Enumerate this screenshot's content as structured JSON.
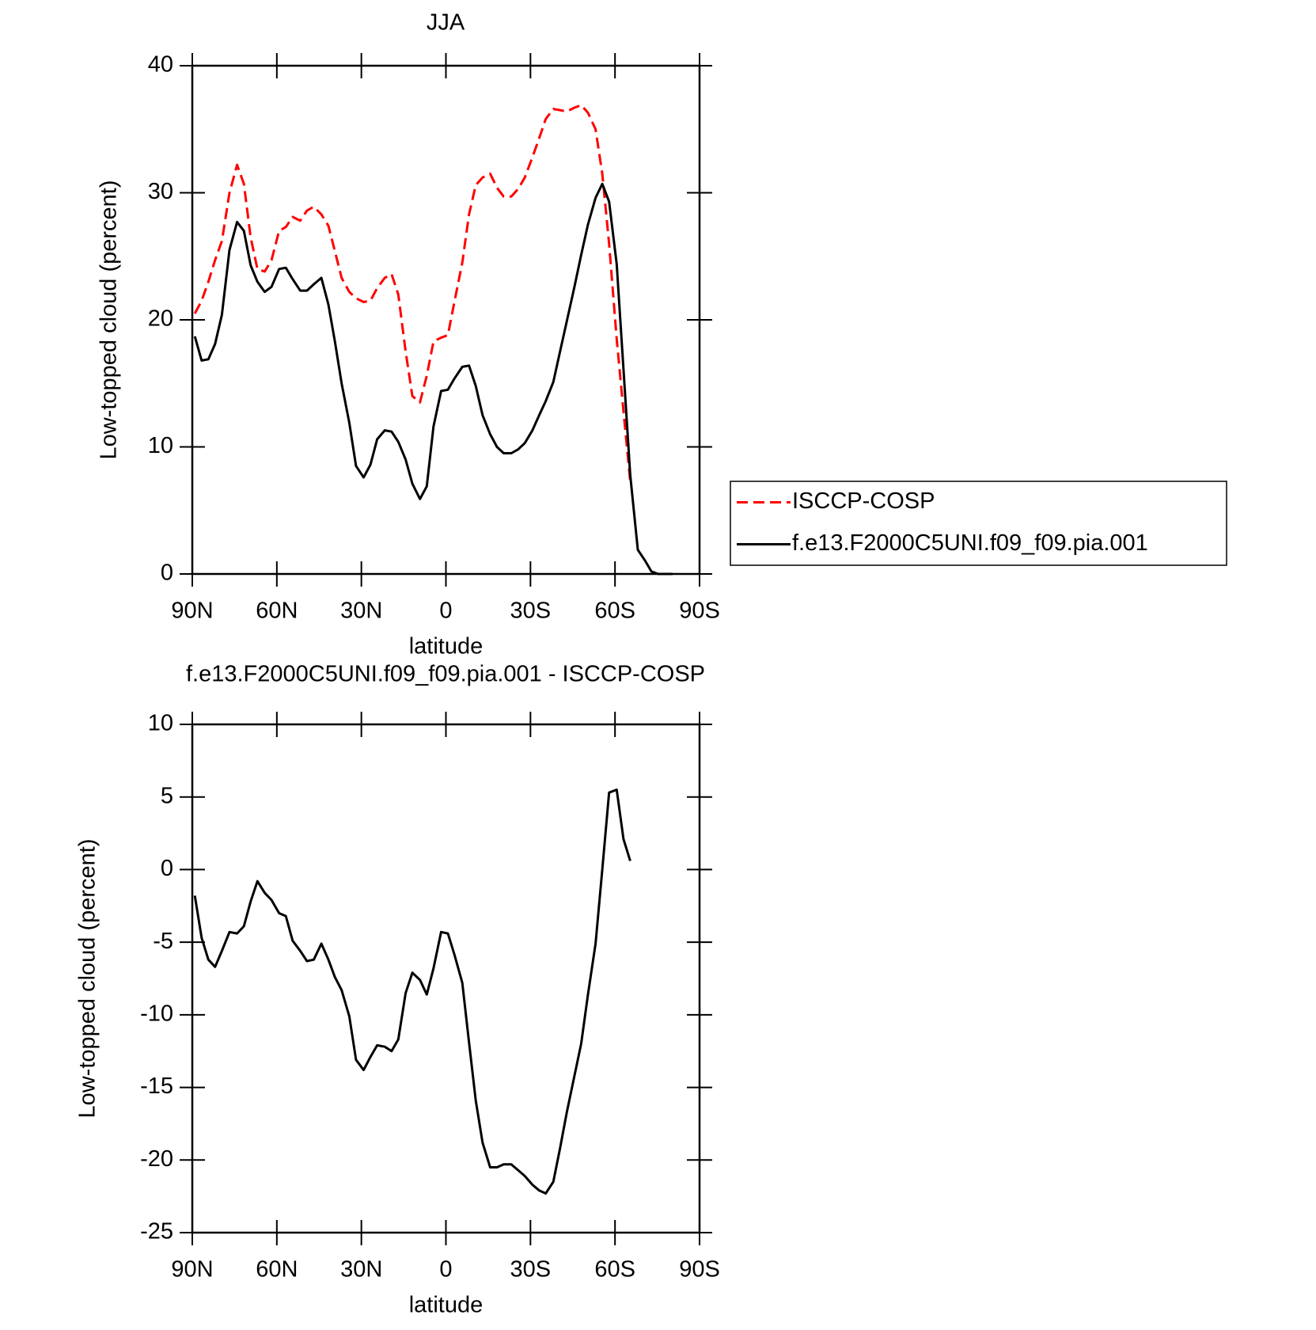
{
  "chart_data": [
    {
      "type": "line",
      "title": "JJA",
      "xlabel": "latitude",
      "ylabel": "Low-topped cloud (percent)",
      "x": [
        89.1,
        86.7,
        84.3,
        81.9,
        79.5,
        76.8,
        74.1,
        71.7,
        69.3,
        66.9,
        64.3,
        61.9,
        59.2,
        56.8,
        54.4,
        51.7,
        49.3,
        46.9,
        44.2,
        41.7,
        39.4,
        37.0,
        34.3,
        31.9,
        29.2,
        26.8,
        24.4,
        21.7,
        19.3,
        16.9,
        14.3,
        11.9,
        9.2,
        6.8,
        4.4,
        1.7,
        -0.7,
        -3.1,
        -5.8,
        -8.2,
        -10.6,
        -13.0,
        -15.7,
        -18.1,
        -20.5,
        -23.2,
        -25.6,
        -28.0,
        -30.7,
        -33.1,
        -35.4,
        -38.1,
        -40.5,
        -42.9,
        -45.6,
        -48.0,
        -50.4,
        -53.1,
        -55.5,
        -57.9,
        -60.6,
        -63.0,
        -65.4,
        -68.1,
        -70.5,
        -72.9,
        -75.3,
        -78.0,
        -80.4
      ],
      "series": [
        {
          "name": "ISCCP-COSP",
          "color": "#ff0000",
          "linestyle": "dashed",
          "values": [
            20.5,
            21.5,
            23.0,
            24.7,
            26.2,
            30.0,
            32.2,
            30.7,
            26.5,
            24.0,
            23.8,
            24.7,
            27.0,
            27.3,
            28.1,
            27.8,
            28.6,
            28.9,
            28.3,
            27.4,
            25.4,
            23.3,
            22.2,
            21.7,
            21.4,
            21.5,
            22.5,
            23.3,
            23.6,
            22.0,
            17.5,
            14.0,
            13.5,
            15.6,
            18.3,
            18.6,
            18.8,
            21.5,
            24.5,
            28.3,
            30.6,
            31.2,
            31.5,
            30.4,
            29.7,
            29.7,
            30.3,
            31.2,
            32.8,
            34.3,
            35.8,
            36.6,
            36.5,
            36.4,
            36.7,
            36.9,
            36.3,
            35.0,
            31.5,
            26.0,
            18.5,
            12.8,
            7.3,
            null,
            null,
            null,
            null,
            null,
            null
          ]
        },
        {
          "name": "f.e13.F2000C5UNI.f09_f09.pia.001",
          "color": "#000000",
          "linestyle": "solid",
          "values": [
            18.7,
            16.8,
            16.9,
            18.1,
            20.4,
            25.5,
            27.7,
            27.0,
            24.3,
            23.0,
            22.2,
            22.6,
            24.0,
            24.1,
            23.2,
            22.3,
            22.3,
            22.8,
            23.3,
            21.2,
            18.3,
            15.0,
            11.9,
            8.5,
            7.6,
            8.6,
            10.6,
            11.3,
            11.2,
            10.4,
            9.0,
            7.1,
            5.9,
            6.9,
            11.6,
            14.4,
            14.5,
            15.4,
            16.3,
            16.4,
            14.8,
            12.5,
            11.0,
            10.0,
            9.5,
            9.5,
            9.8,
            10.3,
            11.3,
            12.5,
            13.6,
            15.1,
            17.5,
            19.9,
            22.6,
            25.1,
            27.5,
            29.6,
            30.7,
            29.3,
            24.4,
            16.1,
            7.8,
            1.9,
            1.1,
            0.2,
            0.0,
            0.0,
            0.0
          ]
        }
      ],
      "xlim": [
        90,
        -90
      ],
      "xticks": [
        {
          "value": 90,
          "label": "90N"
        },
        {
          "value": 60,
          "label": "60N"
        },
        {
          "value": 30,
          "label": "30N"
        },
        0,
        {
          "value": -30,
          "label": "30S"
        },
        {
          "value": -60,
          "label": "60S"
        },
        {
          "value": -90,
          "label": "90S"
        }
      ],
      "ylim": [
        0,
        40
      ],
      "yticks": [
        0,
        10,
        20,
        30,
        40
      ],
      "legend": "right"
    },
    {
      "type": "line",
      "title": "f.e13.F2000C5UNI.f09_f09.pia.001 - ISCCP-COSP",
      "xlabel": "latitude",
      "ylabel": "Low-topped cloud (percent)",
      "x": [
        89.1,
        86.7,
        84.3,
        81.9,
        79.5,
        76.8,
        74.1,
        71.7,
        69.3,
        66.9,
        64.3,
        61.9,
        59.2,
        56.8,
        54.4,
        51.7,
        49.3,
        46.9,
        44.2,
        41.7,
        39.4,
        37.0,
        34.3,
        31.9,
        29.2,
        26.8,
        24.4,
        21.7,
        19.3,
        16.9,
        14.3,
        11.9,
        9.2,
        6.8,
        4.4,
        1.7,
        -0.7,
        -3.1,
        -5.8,
        -8.2,
        -10.6,
        -13.0,
        -15.7,
        -18.1,
        -20.5,
        -23.2,
        -25.6,
        -28.0,
        -30.7,
        -33.1,
        -35.4,
        -38.1,
        -40.5,
        -42.9,
        -45.6,
        -48.0,
        -50.4,
        -53.1,
        -55.5,
        -57.9,
        -60.6,
        -63.0,
        -65.4
      ],
      "series": [
        {
          "color": "#000000",
          "linestyle": "solid",
          "values": [
            -1.8,
            -4.7,
            -6.2,
            -6.7,
            -5.6,
            -4.3,
            -4.4,
            -3.9,
            -2.2,
            -0.8,
            -1.6,
            -2.1,
            -3.0,
            -3.2,
            -4.9,
            -5.6,
            -6.3,
            -6.2,
            -5.1,
            -6.2,
            -7.4,
            -8.3,
            -10.1,
            -13.1,
            -13.8,
            -12.9,
            -12.1,
            -12.2,
            -12.5,
            -11.7,
            -8.5,
            -7.1,
            -7.6,
            -8.6,
            -6.8,
            -4.3,
            -4.4,
            -5.9,
            -7.8,
            -11.9,
            -15.9,
            -18.8,
            -20.5,
            -20.5,
            -20.3,
            -20.3,
            -20.7,
            -21.1,
            -21.7,
            -22.1,
            -22.3,
            -21.5,
            -19.2,
            -16.7,
            -14.2,
            -12.0,
            -8.6,
            -5.1,
            0.0,
            5.3,
            5.5,
            2.1,
            0.6
          ]
        }
      ],
      "xlim": [
        90,
        -90
      ],
      "xticks": [
        {
          "value": 90,
          "label": "90N"
        },
        {
          "value": 60,
          "label": "60N"
        },
        {
          "value": 30,
          "label": "30N"
        },
        0,
        {
          "value": -30,
          "label": "30S"
        },
        {
          "value": -60,
          "label": "60S"
        },
        {
          "value": -90,
          "label": "90S"
        }
      ],
      "ylim": [
        -25,
        10
      ],
      "yticks": [
        -25,
        -20,
        -15,
        -10,
        -5,
        0,
        5,
        10
      ]
    }
  ]
}
